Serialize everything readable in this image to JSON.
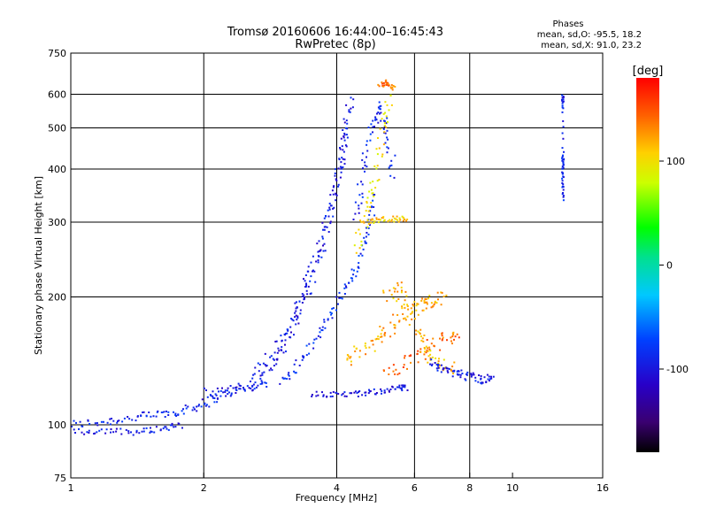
{
  "chart_data": {
    "type": "scatter",
    "title": "Tromsø 20160606 16:44:00–16:45:43",
    "subtitle": "RwPretec (8p)",
    "xlabel": "Frequency [MHz]",
    "ylabel": "Stationary phase Virtual Height [km]",
    "xscale": "log",
    "yscale": "log",
    "xlim": [
      1,
      16
    ],
    "ylim": [
      75,
      750
    ],
    "x_ticks": [
      1,
      2,
      4,
      6,
      8,
      10,
      16
    ],
    "x_gridlines": [
      2,
      4,
      6,
      8
    ],
    "y_ticks": [
      75,
      100,
      200,
      300,
      400,
      500,
      600,
      750
    ],
    "y_gridlines": [
      100,
      200,
      300,
      400,
      500,
      600
    ],
    "grid": true,
    "phase_info": {
      "heading": "Phases",
      "o_line": "mean, sd,O: -95.5, 18.2",
      "x_line": "mean, sd,X:  91.0, 23.2"
    },
    "colorbar": {
      "label": "[deg]",
      "range": [
        -180,
        180
      ],
      "ticks": [
        100,
        0,
        -100
      ]
    },
    "series": [
      {
        "traces": [
          {
            "points": [
              [
                1.0,
                100
              ],
              [
                1.2,
                102
              ],
              [
                1.4,
                104
              ],
              [
                1.6,
                106
              ],
              [
                1.8,
                108
              ],
              [
                2.0,
                112
              ],
              [
                2.2,
                118
              ],
              [
                2.5,
                122
              ],
              [
                2.8,
                126
              ]
            ],
            "phase": -90,
            "spread": 0.03
          },
          {
            "points": [
              [
                1.0,
                96
              ],
              [
                1.2,
                97
              ],
              [
                1.4,
                96
              ],
              [
                1.6,
                98
              ],
              [
                1.8,
                100
              ]
            ],
            "phase": -95,
            "spread": 0.02
          },
          {
            "points": [
              [
                2.0,
                118
              ],
              [
                2.3,
                120
              ],
              [
                2.6,
                125
              ],
              [
                2.9,
                140
              ],
              [
                3.1,
                160
              ],
              [
                3.3,
                190
              ],
              [
                3.5,
                230
              ],
              [
                3.8,
                300
              ],
              [
                4.0,
                380
              ],
              [
                4.2,
                480
              ],
              [
                4.3,
                600
              ]
            ],
            "phase": -100,
            "spread": 0.04
          },
          {
            "points": [
              [
                2.6,
                130
              ],
              [
                2.9,
                150
              ],
              [
                3.2,
                180
              ],
              [
                3.5,
                210
              ],
              [
                3.7,
                260
              ],
              [
                3.9,
                330
              ],
              [
                4.1,
                420
              ],
              [
                4.2,
                520
              ]
            ],
            "phase": -95,
            "spread": 0.04
          },
          {
            "points": [
              [
                3.0,
                125
              ],
              [
                3.3,
                140
              ],
              [
                3.6,
                160
              ],
              [
                3.9,
                185
              ],
              [
                4.2,
                210
              ],
              [
                4.5,
                240
              ],
              [
                4.7,
                290
              ],
              [
                4.9,
                350
              ]
            ],
            "phase": -85,
            "spread": 0.03
          },
          {
            "points": [
              [
                3.5,
                118
              ],
              [
                4.0,
                118
              ],
              [
                4.5,
                118
              ],
              [
                5.0,
                120
              ],
              [
                5.5,
                122
              ],
              [
                5.8,
                122
              ]
            ],
            "phase": -100,
            "spread": 0.02
          },
          {
            "points": [
              [
                4.4,
                300
              ],
              [
                4.6,
                400
              ],
              [
                4.8,
                500
              ],
              [
                5.0,
                560
              ],
              [
                5.2,
                480
              ],
              [
                5.4,
                380
              ]
            ],
            "phase": -90,
            "spread": 0.04
          },
          {
            "points": [
              [
                4.4,
                260
              ],
              [
                4.7,
                320
              ],
              [
                4.9,
                380
              ],
              [
                5.1,
                500
              ],
              [
                5.3,
                600
              ]
            ],
            "phase": 100,
            "spread": 0.04
          },
          {
            "points": [
              [
                4.6,
                300
              ],
              [
                5.0,
                305
              ],
              [
                5.4,
                305
              ],
              [
                5.8,
                305
              ]
            ],
            "phase": 110,
            "spread": 0.02
          },
          {
            "points": [
              [
                4.2,
                140
              ],
              [
                4.6,
                150
              ],
              [
                5.0,
                160
              ],
              [
                5.4,
                175
              ],
              [
                5.8,
                185
              ],
              [
                6.2,
                190
              ],
              [
                6.6,
                195
              ],
              [
                7.0,
                200
              ]
            ],
            "phase": 120,
            "spread": 0.05
          },
          {
            "points": [
              [
                5.2,
                130
              ],
              [
                5.8,
                140
              ],
              [
                6.4,
                150
              ],
              [
                7.0,
                160
              ],
              [
                7.6,
                165
              ]
            ],
            "phase": 140,
            "spread": 0.05
          },
          {
            "points": [
              [
                5.2,
                200
              ],
              [
                5.6,
                210
              ],
              [
                6.0,
                170
              ],
              [
                6.4,
                150
              ],
              [
                6.8,
                140
              ],
              [
                7.4,
                135
              ]
            ],
            "phase": 115,
            "spread": 0.05
          },
          {
            "points": [
              [
                6.5,
                140
              ],
              [
                7.0,
                135
              ],
              [
                7.5,
                132
              ],
              [
                8.0,
                130
              ],
              [
                8.6,
                128
              ],
              [
                9.0,
                128
              ]
            ],
            "phase": -95,
            "spread": 0.03
          },
          {
            "points": [
              [
                5.0,
                630
              ],
              [
                5.2,
                640
              ],
              [
                5.4,
                620
              ]
            ],
            "phase": 140,
            "spread": 0.02
          },
          {
            "points": [
              [
                13.0,
                430
              ],
              [
                13.0,
                400
              ],
              [
                13.0,
                340
              ],
              [
                13.0,
                560
              ],
              [
                13.0,
                600
              ]
            ],
            "phase": -90,
            "spread": 0.01
          }
        ]
      }
    ]
  }
}
